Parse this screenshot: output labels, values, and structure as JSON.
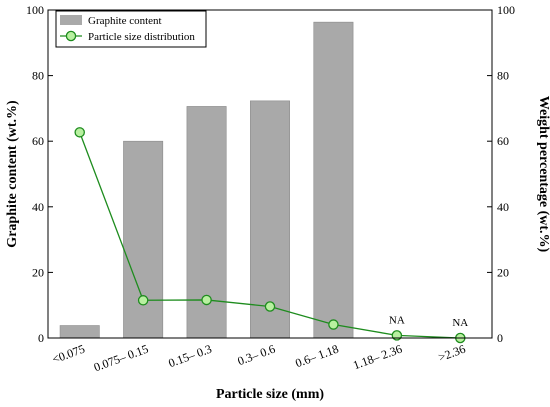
{
  "chart_data": {
    "type": "bar",
    "categories": [
      "<0.075",
      "0.075– 0.15",
      "0.15– 0.3",
      "0.3– 0.6",
      "0.6– 1.18",
      "1.18– 2.36",
      ">2.36"
    ],
    "series": [
      {
        "name": "Graphite content",
        "type": "bar",
        "axis": "left",
        "color": "#a9a9a9",
        "values": [
          3.8,
          60.0,
          70.6,
          72.3,
          96.3,
          null,
          null
        ]
      },
      {
        "name": "Particle size distribution",
        "type": "line",
        "axis": "right",
        "color": "#1e8c1e",
        "marker_fill": "#b8f0a0",
        "values": [
          62.7,
          11.5,
          11.6,
          9.6,
          4.1,
          0.8,
          0.0
        ]
      }
    ],
    "annotations": [
      {
        "category": "1.18– 2.36",
        "text": "NA"
      },
      {
        "category": ">2.36",
        "text": "NA"
      }
    ],
    "xlabel": "Particle size (mm)",
    "ylabel": "Graphite content (wt.%)",
    "y2label": "Weight percentage (wt.%)",
    "ylim": [
      0,
      100
    ],
    "y2lim": [
      0,
      100
    ],
    "yticks": [
      0,
      20,
      40,
      60,
      80,
      100
    ],
    "y2ticks": [
      0,
      20,
      40,
      60,
      80,
      100
    ],
    "grid": false,
    "legend_position": "top-left"
  }
}
